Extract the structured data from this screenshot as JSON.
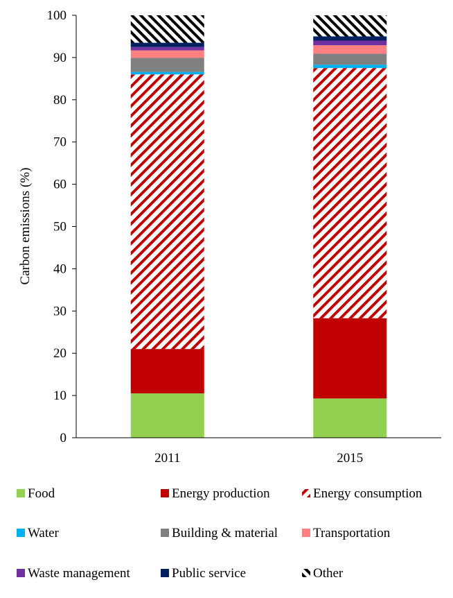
{
  "chart_data": {
    "type": "bar",
    "stacked": true,
    "title": "",
    "xlabel": "",
    "ylabel": "Carbon emissions (%)",
    "ylim": [
      0,
      100
    ],
    "yticks": [
      0,
      10,
      20,
      30,
      40,
      50,
      60,
      70,
      80,
      90,
      100
    ],
    "grid": false,
    "legend_position": "bottom",
    "categories": [
      "2011",
      "2015"
    ],
    "series": [
      {
        "name": "Food",
        "values": [
          10.5,
          9.3
        ],
        "color": "#92d050",
        "pattern": "solid"
      },
      {
        "name": "Energy production",
        "values": [
          10.5,
          19.0
        ],
        "color": "#c00000",
        "pattern": "solid"
      },
      {
        "name": "Energy consumption",
        "values": [
          65.0,
          59.2
        ],
        "color": "#c00000",
        "pattern": "diagonal-up"
      },
      {
        "name": "Water",
        "values": [
          0.6,
          0.8
        ],
        "color": "#00b0f0",
        "pattern": "solid"
      },
      {
        "name": "Building & material",
        "values": [
          3.3,
          2.6
        ],
        "color": "#808080",
        "pattern": "solid"
      },
      {
        "name": "Transportation",
        "values": [
          1.8,
          2.0
        ],
        "color": "#ff8080",
        "pattern": "solid"
      },
      {
        "name": "Waste management",
        "values": [
          0.8,
          1.1
        ],
        "color": "#7030a0",
        "pattern": "solid"
      },
      {
        "name": "Public service",
        "values": [
          1.0,
          1.0
        ],
        "color": "#002060",
        "pattern": "solid"
      },
      {
        "name": "Other",
        "values": [
          6.5,
          5.0
        ],
        "color": "#000000",
        "pattern": "diagonal-down"
      }
    ]
  }
}
